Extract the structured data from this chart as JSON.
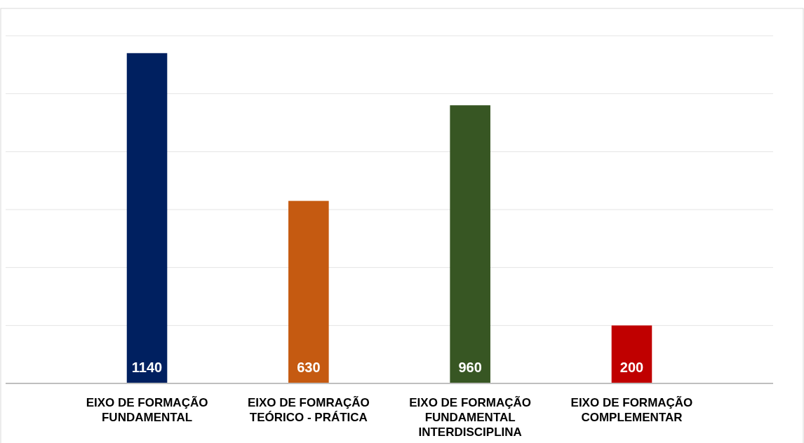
{
  "chart_data": {
    "type": "bar",
    "categories": [
      "EIXO DE FORMAÇÃO\nFUNDAMENTAL",
      "EIXO DE FOMRAÇÃO\nTEÓRICO  - PRÁTICA",
      "EIXO DE FORMAÇÃO\nFUNDAMENTAL\nINTERDISCIPLINA",
      "EIXO DE FORMAÇÃO\nCOMPLEMENTAR"
    ],
    "values": [
      1140,
      630,
      960,
      200
    ],
    "colors": [
      "#002060",
      "#c55a11",
      "#375623",
      "#c00000"
    ],
    "ylim": [
      0,
      1200
    ],
    "yticks": [
      {
        "value": 0,
        "label": null
      },
      {
        "value": 200,
        "label": null
      },
      {
        "value": 400,
        "label": null
      },
      {
        "value": 600,
        "label": null
      },
      {
        "value": 800,
        "label": null
      },
      {
        "value": 1000,
        "label": null
      },
      {
        "value": 1200,
        "label": null
      }
    ],
    "grid": "y",
    "tick_labels": "x",
    "data_labels": true
  }
}
